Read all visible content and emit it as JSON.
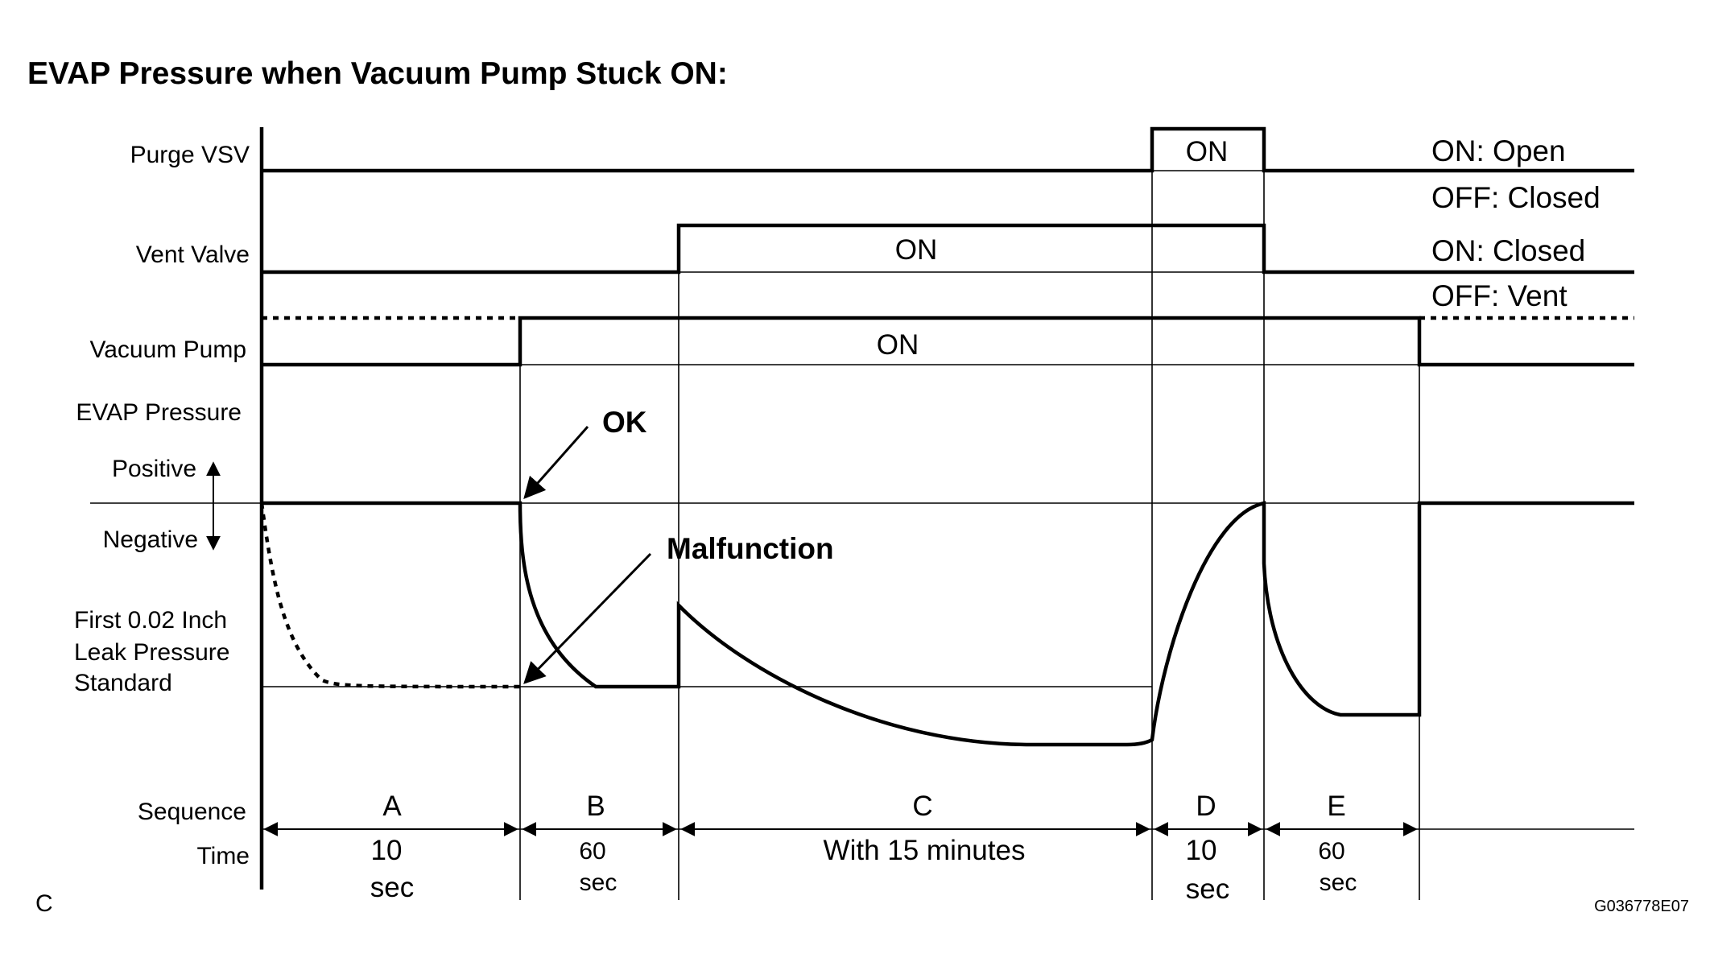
{
  "diagram": {
    "title": "EVAP Pressure when Vacuum Pump Stuck ON:",
    "rows": {
      "purge_vsv": "Purge VSV",
      "vent_valve": "Vent Valve",
      "vacuum_pump": "Vacuum Pump",
      "evap_pressure": "EVAP Pressure",
      "positive": "Positive",
      "negative": "Negative",
      "leak_standard": [
        "First 0.02 Inch",
        "Leak Pressure",
        "Standard"
      ],
      "sequence": "Sequence",
      "time": "Time"
    },
    "state_labels": {
      "purge_on": "ON",
      "vent_on": "ON",
      "pump_on": "ON"
    },
    "legend": {
      "purge_on": "ON: Open",
      "purge_off": "OFF: Closed",
      "vent_on": "ON: Closed",
      "vent_off": "OFF: Vent"
    },
    "callouts": {
      "ok": "OK",
      "malfunction": "Malfunction"
    },
    "sequence": [
      {
        "label": "A",
        "time": [
          "10",
          "sec"
        ]
      },
      {
        "label": "B",
        "time": [
          "60",
          "sec"
        ]
      },
      {
        "label": "C",
        "time": [
          "With 15 minutes"
        ]
      },
      {
        "label": "D",
        "time": [
          "10",
          "sec"
        ]
      },
      {
        "label": "E",
        "time": [
          "60",
          "sec"
        ]
      }
    ],
    "corner_label": "C",
    "figure_code": "G036778E07"
  }
}
